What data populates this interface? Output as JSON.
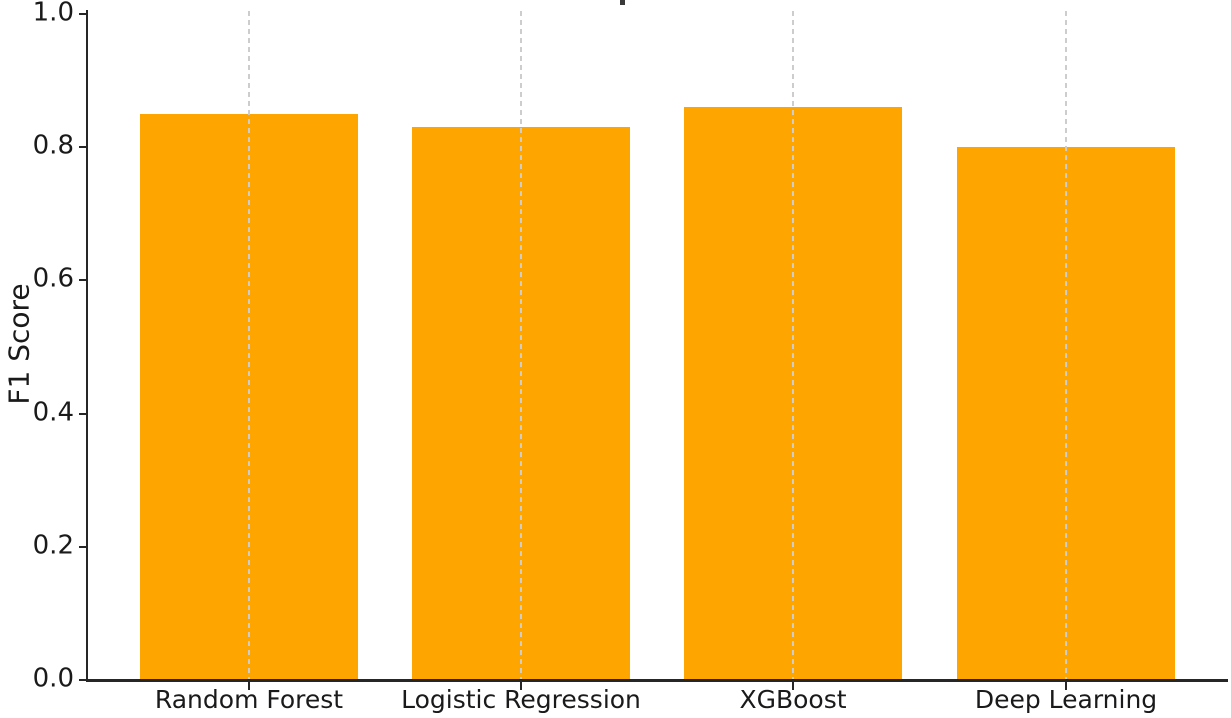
{
  "chart_data": {
    "type": "bar",
    "title": "",
    "title_clipped_fragment_visible": true,
    "categories": [
      "Random Forest",
      "Logistic Regression",
      "XGBoost",
      "Deep Learning"
    ],
    "values": [
      0.85,
      0.83,
      0.86,
      0.8
    ],
    "xlabel": "",
    "ylabel": "F1 Score",
    "ylim": [
      0.0,
      1.0
    ],
    "yticks": [
      "0.0",
      "0.2",
      "0.4",
      "0.6",
      "0.8",
      "1.0"
    ],
    "legend": "none",
    "grid": "vertical-dashed-over-bars",
    "bar_color": "#FFA500",
    "gridline_color": "#cdcdcd",
    "axis_color": "#262626",
    "text_color": "#1a1a1a",
    "background_color": "#ffffff"
  }
}
